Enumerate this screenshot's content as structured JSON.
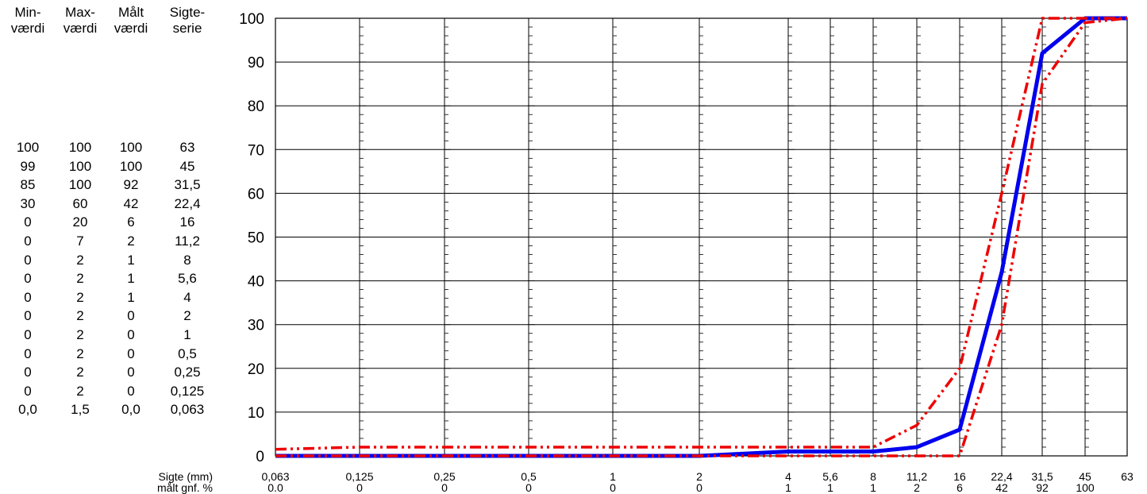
{
  "table": {
    "headers": [
      {
        "line1": "Min-",
        "line2": "værdi"
      },
      {
        "line1": "Max-",
        "line2": "værdi"
      },
      {
        "line1": "Målt",
        "line2": "værdi"
      },
      {
        "line1": "Sigte-",
        "line2": "serie"
      }
    ],
    "rows": [
      [
        "100",
        "100",
        "100",
        "63"
      ],
      [
        "99",
        "100",
        "100",
        "45"
      ],
      [
        "85",
        "100",
        "92",
        "31,5"
      ],
      [
        "30",
        "60",
        "42",
        "22,4"
      ],
      [
        "0",
        "20",
        "6",
        "16"
      ],
      [
        "0",
        "7",
        "2",
        "11,2"
      ],
      [
        "0",
        "2",
        "1",
        "8"
      ],
      [
        "0",
        "2",
        "1",
        "5,6"
      ],
      [
        "0",
        "2",
        "1",
        "4"
      ],
      [
        "0",
        "2",
        "0",
        "2"
      ],
      [
        "0",
        "2",
        "0",
        "1"
      ],
      [
        "0",
        "2",
        "0",
        "0,5"
      ],
      [
        "0",
        "2",
        "0",
        "0,25"
      ],
      [
        "0",
        "2",
        "0",
        "0,125"
      ],
      [
        "0,0",
        "1,5",
        "0,0",
        "0,063"
      ]
    ]
  },
  "chart_data": {
    "type": "line",
    "x": [
      0.063,
      0.125,
      0.25,
      0.5,
      1,
      2,
      4,
      5.6,
      8,
      11.2,
      16,
      22.4,
      31.5,
      45,
      63
    ],
    "x_tick_labels": [
      "0,063",
      "0,125",
      "0,25",
      "0,5",
      "1",
      "2",
      "4",
      "5,6",
      "8",
      "11,2",
      "16",
      "22,4",
      "31,5",
      "45",
      "63"
    ],
    "row2_values": [
      "0.0",
      "0",
      "0",
      "0",
      "0",
      "0",
      "1",
      "1",
      "1",
      "2",
      "6",
      "42",
      "92",
      "100",
      ""
    ],
    "xlabel": "Sigte (mm)",
    "row2_label": "målt gnf. %",
    "ylim": [
      0,
      100
    ],
    "y_ticks": [
      0,
      10,
      20,
      30,
      40,
      50,
      60,
      70,
      80,
      90,
      100
    ],
    "grid": true,
    "series": [
      {
        "values": [
          0,
          0,
          0,
          0,
          0,
          0,
          1,
          1,
          1,
          2,
          6,
          42,
          92,
          100,
          100
        ],
        "color": "#0000ee",
        "style": "solid"
      },
      {
        "values": [
          0,
          0,
          0,
          0,
          0,
          0,
          0,
          0,
          0,
          0,
          0,
          30,
          85,
          99,
          100
        ],
        "color": "#ee0000",
        "style": "dash-dot-dot"
      },
      {
        "values": [
          1.5,
          2,
          2,
          2,
          2,
          2,
          2,
          2,
          2,
          7,
          20,
          60,
          100,
          100,
          100
        ],
        "color": "#ee0000",
        "style": "dash-dot-dot"
      }
    ]
  }
}
